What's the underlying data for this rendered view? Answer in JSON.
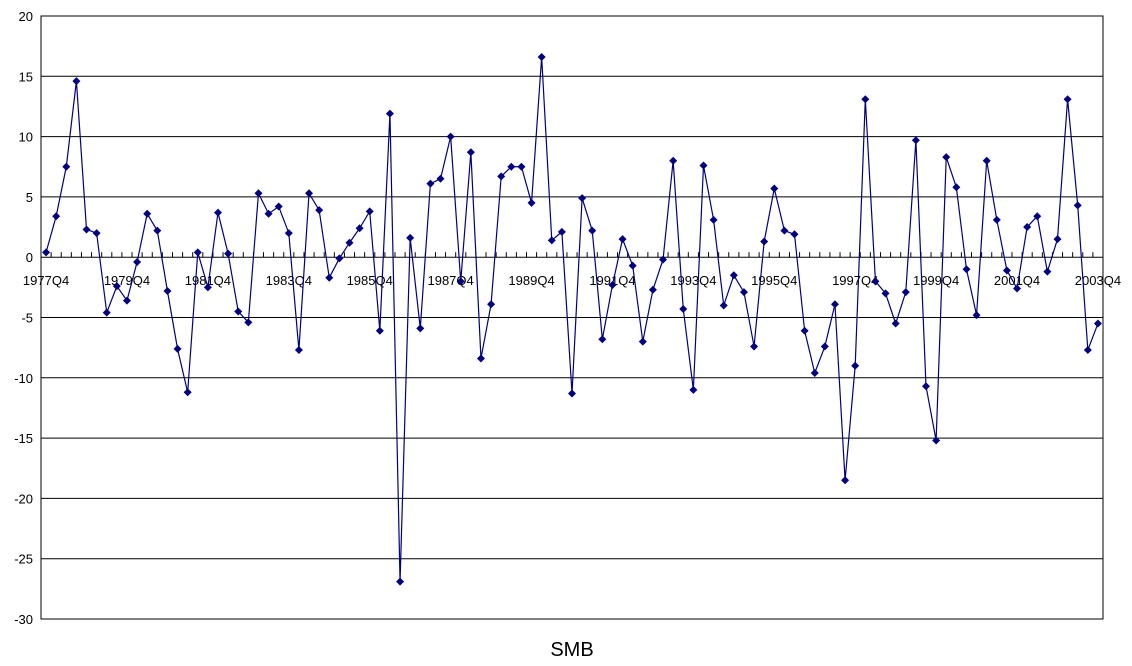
{
  "chart_data": {
    "type": "line",
    "title": "",
    "xlabel": "SMB",
    "ylabel": "",
    "ylim": [
      -30,
      20
    ],
    "y_ticks": [
      20,
      15,
      10,
      5,
      0,
      -5,
      -10,
      -15,
      -20,
      -25,
      -30
    ],
    "y_tick_labels": [
      "20",
      "15",
      "10",
      "5",
      "0",
      "-5",
      "-10",
      "-15",
      "-20",
      "-25",
      "-30"
    ],
    "grid": "horizontal",
    "x_tick_labels": [
      "1977Q4",
      "1979Q4",
      "1981Q4",
      "1983Q4",
      "1985Q4",
      "1987Q4",
      "1989Q4",
      "1991Q4",
      "1993Q4",
      "1995Q4",
      "1997Q4",
      "1999Q4",
      "2001Q4",
      "2003Q4"
    ],
    "x_tick_label_every": 8,
    "line_color": "#000080",
    "marker": "diamond",
    "series": [
      {
        "values": [
          0.4,
          3.4,
          7.5,
          14.6,
          2.3,
          2.0,
          -4.6,
          -2.4,
          -3.6,
          -0.4,
          3.6,
          2.2,
          -2.8,
          -7.6,
          -11.2,
          0.4,
          -2.5,
          3.7,
          0.3,
          -4.5,
          -5.4,
          5.3,
          3.6,
          4.2,
          2.0,
          -7.7,
          5.3,
          3.9,
          -1.7,
          -0.1,
          1.2,
          2.4,
          3.8,
          -6.1,
          11.9,
          -26.9,
          1.6,
          -5.9,
          6.1,
          6.5,
          10.0,
          -2.0,
          8.7,
          -8.4,
          -3.9,
          6.7,
          7.5,
          7.5,
          4.5,
          16.6,
          1.4,
          2.1,
          -11.3,
          4.9,
          2.2,
          -6.8,
          -2.3,
          1.5,
          -0.7,
          -7.0,
          -2.7,
          -0.2,
          8.0,
          -4.3,
          -11.0,
          7.6,
          3.1,
          -4.0,
          -1.5,
          -2.9,
          -7.4,
          1.3,
          5.7,
          2.2,
          1.9,
          -6.1,
          -9.6,
          -7.4,
          -3.9,
          -18.5,
          -9.0,
          13.1,
          -2.0,
          -3.0,
          -5.5,
          -2.9,
          9.7,
          -10.7,
          -15.2,
          8.3,
          5.8,
          -1.0,
          -4.8,
          8.0,
          3.1,
          -1.1,
          -2.6,
          2.5,
          3.4,
          -1.2,
          1.5,
          13.1,
          4.3,
          -7.7,
          -5.5
        ]
      }
    ]
  }
}
